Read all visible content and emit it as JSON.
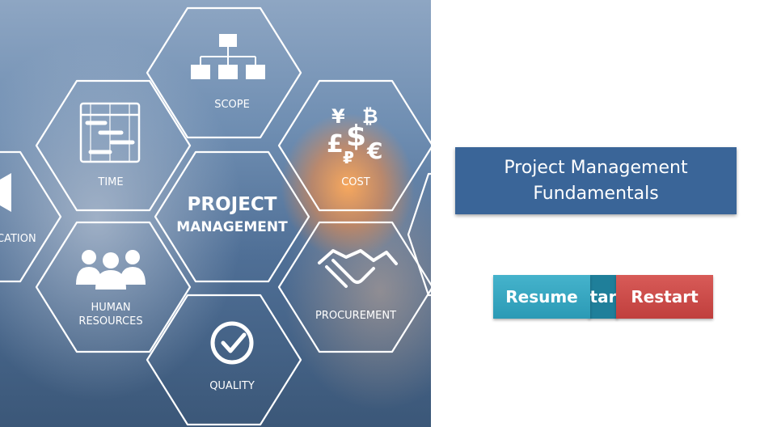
{
  "hero": {
    "center_line1": "PROJECT",
    "center_line2": "MANAGEMENT",
    "hexes": {
      "scope": "SCOPE",
      "time": "TIME",
      "cost": "COST",
      "communication": "CATION",
      "procurement": "PROCUREMENT",
      "human_resources_line1": "HUMAN",
      "human_resources_line2": "RESOURCES",
      "quality": "QUALITY"
    },
    "cost_symbols": {
      "yen": "¥",
      "bitcoin": "₿",
      "pound": "£",
      "dollar": "$",
      "ruble": "₽",
      "euro": "€"
    }
  },
  "course": {
    "title_line1": "Project Management",
    "title_line2": "Fundamentals"
  },
  "buttons": {
    "resume": "Resume",
    "start": "tar",
    "restart": "Restart"
  },
  "colors": {
    "title_bg": "#3a6598",
    "resume_bg": "#2b9ab5",
    "start_bg": "#1f7f9a",
    "restart_bg": "#c03f3d"
  }
}
